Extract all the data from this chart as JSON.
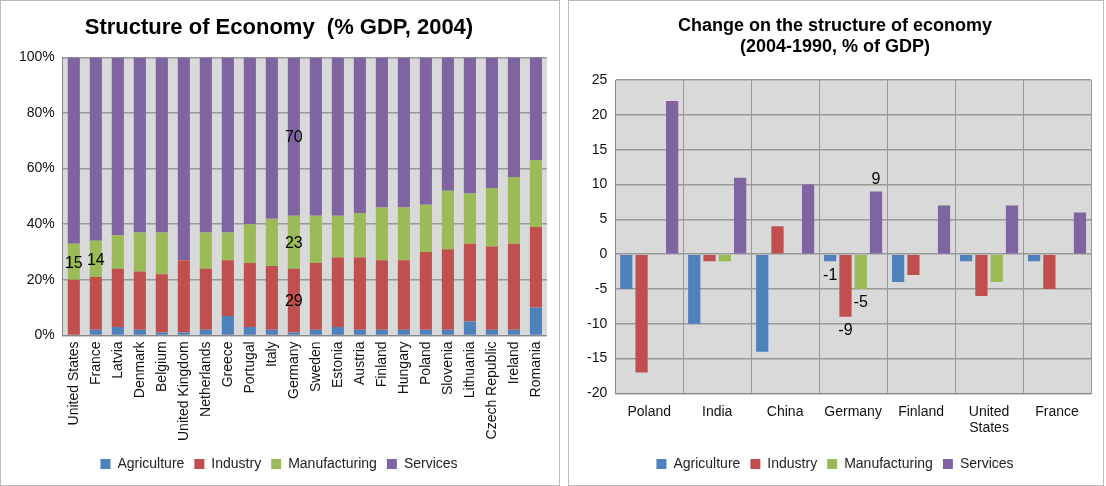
{
  "chart_data": [
    {
      "type": "bar",
      "title": "Structure of Economy  (% GDP, 2004)",
      "stacked": true,
      "categories": [
        "United States",
        "France",
        "Latvia",
        "Denmark",
        "Belgium",
        "United Kingdom",
        "Netherlands",
        "Greece",
        "Portugal",
        "Italy",
        "Germany",
        "Sweden",
        "Estonia",
        "Austria",
        "Finland",
        "Hungary",
        "Poland",
        "Slovenia",
        "Lithuania",
        "Czech Republic",
        "Ireland",
        "Romania"
      ],
      "series": [
        {
          "name": "Agriculture",
          "color": "#4f81bd",
          "values": [
            0,
            2,
            3,
            2,
            1,
            1,
            2,
            7,
            3,
            2,
            1,
            2,
            3,
            2,
            2,
            2,
            2,
            2,
            5,
            2,
            2,
            10
          ]
        },
        {
          "name": "Industry",
          "color": "#c0504d",
          "values": [
            20,
            19,
            21,
            21,
            21,
            26,
            22,
            20,
            23,
            23,
            23,
            24,
            25,
            26,
            25,
            25,
            28,
            29,
            28,
            30,
            31,
            29
          ]
        },
        {
          "name": "Manufacturing",
          "color": "#9bbb59",
          "values": [
            13,
            13,
            12,
            14,
            15,
            0,
            13,
            10,
            14,
            17,
            19,
            17,
            15,
            16,
            19,
            19,
            17,
            21,
            18,
            21,
            24,
            24
          ]
        },
        {
          "name": "Services",
          "color": "#8064a2",
          "values": [
            67,
            66,
            64,
            63,
            63,
            73,
            63,
            63,
            60,
            58,
            57,
            57,
            57,
            56,
            54,
            54,
            53,
            48,
            49,
            47,
            43,
            37
          ]
        }
      ],
      "ylim": [
        0,
        100
      ],
      "yticks": [
        {
          "value": 0,
          "label": "0%"
        },
        {
          "value": 20,
          "label": "20%"
        },
        {
          "value": 40,
          "label": "40%"
        },
        {
          "value": 60,
          "label": "60%"
        },
        {
          "value": 80,
          "label": "80%"
        },
        {
          "value": 100,
          "label": "100%"
        }
      ],
      "annotations": [
        {
          "text": "15",
          "x": "United States",
          "y": 26
        },
        {
          "text": "14",
          "x": "France",
          "y": 27
        },
        {
          "text": "70",
          "x": "Germany",
          "y": 71
        },
        {
          "text": "23",
          "x": "Germany",
          "y": 33
        },
        {
          "text": "29",
          "x": "Germany",
          "y": 12
        }
      ],
      "grid": "y",
      "legend": "bottom"
    },
    {
      "type": "bar",
      "title": "Change on the structure of economy (2004-1990, % of GDP)",
      "categories": [
        "Poland",
        "India",
        "China",
        "Germany",
        "Finland",
        "United States",
        "France"
      ],
      "series": [
        {
          "name": "Agriculture",
          "color": "#4f81bd",
          "values": [
            -5,
            -10,
            -14,
            -1,
            -4,
            -1,
            -1
          ],
          "value_labels": [
            null,
            null,
            null,
            "-1",
            null,
            null,
            null
          ]
        },
        {
          "name": "Industry",
          "color": "#c0504d",
          "values": [
            -17,
            -1,
            4,
            -9,
            -3,
            -6,
            -5
          ],
          "value_labels": [
            null,
            null,
            null,
            "-9",
            null,
            null,
            null
          ]
        },
        {
          "name": "Manufacturing",
          "color": "#9bbb59",
          "values": [
            0,
            -1,
            0,
            -5,
            0,
            -4,
            0
          ],
          "value_labels": [
            null,
            null,
            null,
            "-5",
            null,
            null,
            null
          ]
        },
        {
          "name": "Services",
          "color": "#8064a2",
          "values": [
            22,
            11,
            10,
            9,
            7,
            7,
            6
          ],
          "value_labels": [
            null,
            null,
            null,
            "9",
            null,
            null,
            null
          ]
        }
      ],
      "ylim": [
        -20,
        25
      ],
      "yticks": [
        -20,
        -15,
        -10,
        -5,
        0,
        5,
        10,
        15,
        20,
        25
      ],
      "grid": true,
      "legend": "bottom"
    }
  ]
}
